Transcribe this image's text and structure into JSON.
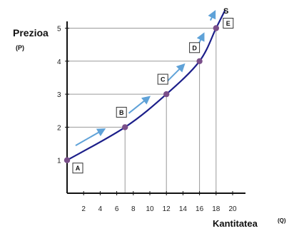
{
  "chart_data": {
    "type": "line",
    "ylabel": "Prezioa",
    "ylabel_unit": "(P)",
    "xlabel": "Kantitatea",
    "xlabel_unit": "(Q)",
    "x_ticks": [
      "2",
      "4",
      "6",
      "8",
      "10",
      "12",
      "14",
      "16",
      "18",
      "20"
    ],
    "y_ticks": [
      "1",
      "2",
      "3",
      "4",
      "5"
    ],
    "xlim": [
      0,
      21
    ],
    "ylim": [
      0,
      5.5
    ],
    "grid": false,
    "series": [
      {
        "name": "S",
        "points": [
          {
            "x": 0,
            "y": 1
          },
          {
            "x": 7,
            "y": 2
          },
          {
            "x": 12,
            "y": 3
          },
          {
            "x": 16,
            "y": 4
          },
          {
            "x": 18,
            "y": 5
          }
        ]
      }
    ],
    "point_labels": [
      "A",
      "B",
      "C",
      "D",
      "E"
    ],
    "colors": {
      "curve": "#1c1f8a",
      "points": "#7a4f8a",
      "arrows": "#5fa2d8",
      "guides": "#9a9a9a",
      "axes": "#111111"
    }
  }
}
